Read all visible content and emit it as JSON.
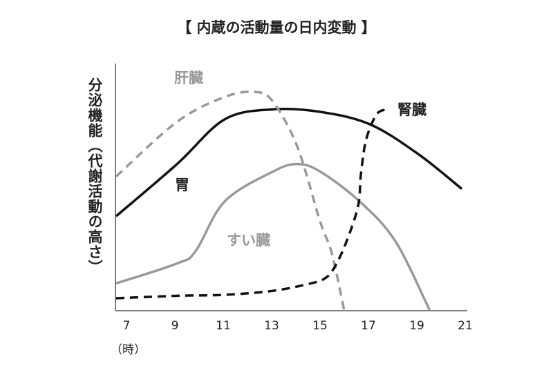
{
  "chart_data": {
    "type": "line",
    "title": "【 内蔵の活動量の日内変動 】",
    "ylabel": "分泌機能（代謝活動の高さ）",
    "xunit": "（時）",
    "xlim": [
      6.57,
      21
    ],
    "ylim": [
      0,
      100
    ],
    "xticks": [
      7,
      9,
      11,
      13,
      15,
      17,
      19,
      21
    ],
    "yticks": [],
    "grid": false,
    "series": [
      {
        "name": "胃",
        "color": "#111111",
        "dashed": false,
        "x": [
          6.57,
          9.09,
          11.06,
          13.06,
          15.0,
          17.06,
          19.06,
          20.86
        ],
        "y": [
          38,
          59,
          77,
          81,
          80,
          75,
          63,
          49
        ]
      },
      {
        "name": "肝臓",
        "color": "#999999",
        "dashed": true,
        "x": [
          6.57,
          9.09,
          11.06,
          12.34,
          13.06,
          14.06,
          15.0,
          15.49,
          16.0
        ],
        "y": [
          54,
          76,
          86,
          88,
          84,
          66,
          36,
          23,
          0
        ]
      },
      {
        "name": "すい臓",
        "color": "#999999",
        "dashed": false,
        "x": [
          6.57,
          9.09,
          9.86,
          11.06,
          13.06,
          14.06,
          15.0,
          16.63,
          18.11,
          19.54
        ],
        "y": [
          11,
          19,
          24,
          44,
          56,
          59,
          56,
          44,
          28,
          0
        ]
      },
      {
        "name": "腎臓",
        "color": "#111111",
        "dashed": true,
        "x": [
          6.57,
          9.09,
          11.06,
          13.06,
          14.63,
          15.2,
          15.57,
          16.06,
          16.57,
          16.69,
          16.91,
          17.34,
          17.77
        ],
        "y": [
          5,
          6,
          6.4,
          8,
          11,
          13,
          17,
          27,
          42,
          55,
          69,
          79,
          81
        ]
      }
    ]
  }
}
